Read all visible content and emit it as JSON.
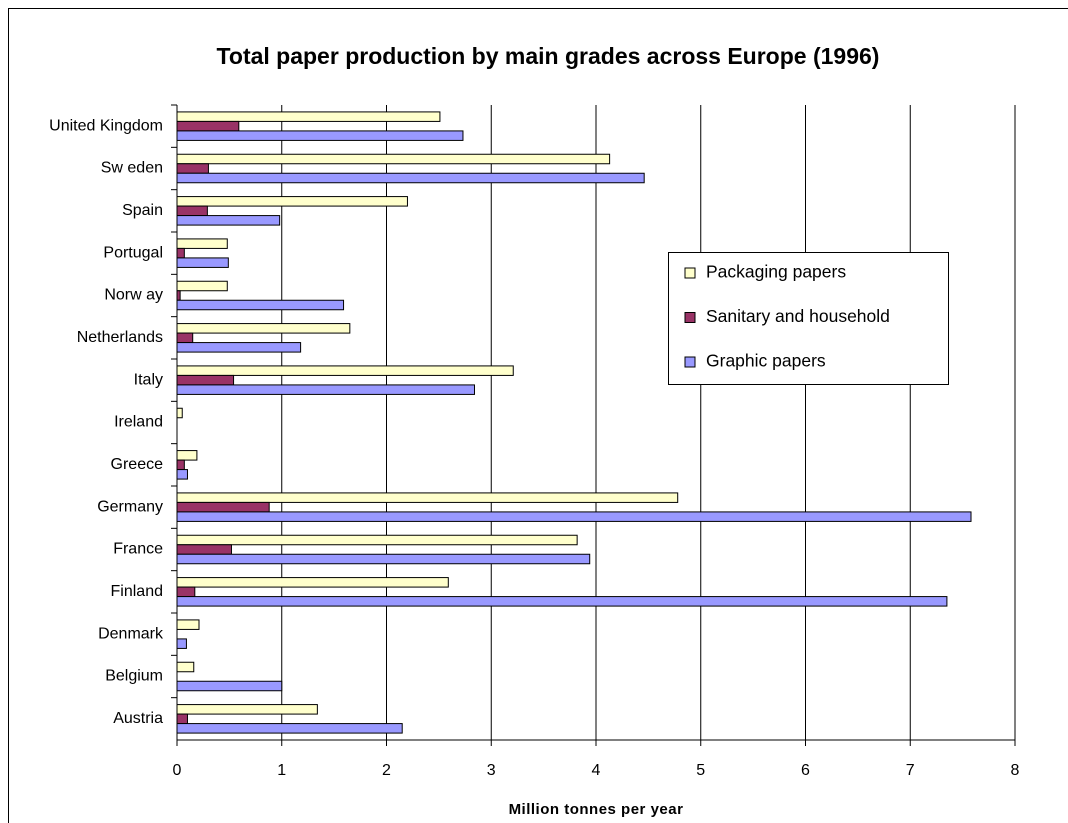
{
  "chart_data": {
    "type": "hbar",
    "title": "Total paper production by main grades across Europe (1996)",
    "x_label": "Million tonnes per year",
    "categories": [
      "Austria",
      "Belgium",
      "Denmark",
      "Finland",
      "France",
      "Germany",
      "Greece",
      "Ireland",
      "Italy",
      "Netherlands",
      "Norw ay",
      "Portugal",
      "Spain",
      "Sw eden",
      "United Kingdom"
    ],
    "series": [
      {
        "name": "Packaging papers",
        "color": "#ffffcc",
        "values": [
          1.34,
          0.16,
          0.21,
          2.59,
          3.82,
          4.78,
          0.19,
          0.05,
          3.21,
          1.65,
          0.48,
          0.48,
          2.2,
          4.13,
          2.51
        ]
      },
      {
        "name": "Sanitary and household",
        "color": "#993366",
        "values": [
          0.1,
          0,
          0,
          0.17,
          0.52,
          0.88,
          0.07,
          0,
          0.54,
          0.15,
          0.03,
          0.07,
          0.29,
          0.3,
          0.59
        ]
      },
      {
        "name": "Graphic papers",
        "color": "#9999ff",
        "values": [
          2.15,
          1.0,
          0.09,
          7.35,
          3.94,
          7.58,
          0.1,
          0,
          2.84,
          1.18,
          1.59,
          0.49,
          0.98,
          4.46,
          2.73
        ]
      }
    ],
    "xlim": [
      0,
      8
    ],
    "xticks": [
      0,
      1,
      2,
      3,
      4,
      5,
      6,
      7,
      8
    ],
    "grid": true
  }
}
